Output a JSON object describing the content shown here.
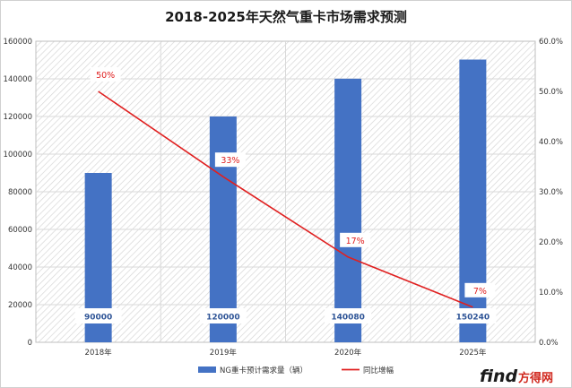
{
  "chart_data": {
    "type": "bar",
    "title": "2018-2025年天然气重卡市场需求预测",
    "categories": [
      "2018年",
      "2019年",
      "2020年",
      "2025年"
    ],
    "series": [
      {
        "name": "NG重卡预计需求量（辆）",
        "kind": "bar",
        "axis": "left",
        "values": [
          90000,
          120000,
          140080,
          150240
        ],
        "labels": [
          "90000",
          "120000",
          "140080",
          "150240"
        ],
        "color": "#4472c4"
      },
      {
        "name": "同比增幅",
        "kind": "line",
        "axis": "right",
        "values": [
          50,
          33,
          17,
          7
        ],
        "labels": [
          "50%",
          "33%",
          "17%",
          "7%"
        ],
        "color": "#e02020"
      }
    ],
    "y_left": {
      "min": 0,
      "max": 160000,
      "ticks": [
        "0",
        "20000",
        "40000",
        "60000",
        "80000",
        "100000",
        "120000",
        "140000",
        "160000"
      ]
    },
    "y_right": {
      "min": 0,
      "max": 60,
      "ticks": [
        "0.0%",
        "10.0%",
        "20.0%",
        "30.0%",
        "40.0%",
        "50.0%",
        "60.0%"
      ]
    },
    "grid": true,
    "legend": "bottom"
  },
  "watermark": {
    "text": "find方得网",
    "brand_prefix": "find",
    "brand_suffix": "方得网"
  }
}
